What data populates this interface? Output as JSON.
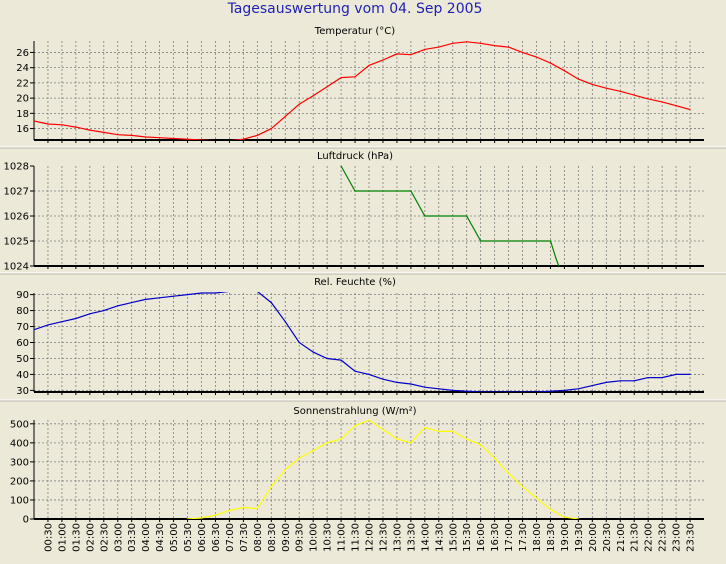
{
  "page": {
    "title": "Tagesauswertung vom 04. Sep 2005",
    "title_color": "#1f1fb4"
  },
  "colors": {
    "background": "#ece9d8",
    "plot_background": "#ece9d8",
    "grid": "#808080",
    "axis_text": "#000000",
    "separator": "#ffffff"
  },
  "x_labels": [
    "00:30",
    "01:00",
    "01:30",
    "02:00",
    "02:30",
    "03:00",
    "03:30",
    "04:00",
    "04:30",
    "05:00",
    "05:30",
    "06:00",
    "06:30",
    "07:00",
    "07:30",
    "08:00",
    "08:30",
    "09:00",
    "09:30",
    "10:00",
    "10:30",
    "11:00",
    "11:30",
    "12:00",
    "12:30",
    "13:00",
    "13:30",
    "14:00",
    "14:30",
    "15:00",
    "15:30",
    "16:00",
    "16:30",
    "17:00",
    "17:30",
    "18:00",
    "18:30",
    "19:00",
    "19:30",
    "20:00",
    "20:30",
    "21:00",
    "21:30",
    "22:00",
    "22:30",
    "23:00",
    "23:30"
  ],
  "chart_data": [
    {
      "type": "line",
      "title": "Temperatur (°C)",
      "color": "#ff0000",
      "ylim": [
        14.5,
        27.5
      ],
      "yticks": [
        16,
        18,
        20,
        22,
        24,
        26
      ],
      "grid": true,
      "x": [
        0.0,
        0.5,
        1.0,
        1.5,
        2.0,
        2.5,
        3.0,
        3.5,
        4.0,
        4.5,
        5.0,
        5.5,
        6.0,
        6.5,
        7.0,
        7.5,
        8.0,
        8.5,
        9.0,
        9.5,
        10.0,
        10.5,
        11.0,
        11.5,
        12.0,
        12.5,
        13.0,
        13.5,
        14.0,
        14.5,
        15.0,
        15.5,
        16.0,
        16.5,
        17.0,
        17.5,
        18.0,
        18.5,
        19.0,
        19.5,
        20.0,
        20.5,
        21.0,
        21.5,
        22.0,
        22.5,
        23.0,
        23.5
      ],
      "values": [
        17.0,
        16.6,
        16.5,
        16.2,
        15.8,
        15.5,
        15.2,
        15.1,
        14.9,
        14.8,
        14.7,
        14.6,
        14.5,
        14.4,
        14.4,
        14.6,
        15.1,
        16.0,
        17.6,
        19.2,
        20.3,
        21.5,
        22.7,
        22.8,
        24.3,
        25.0,
        25.8,
        25.7,
        26.4,
        26.7,
        27.2,
        27.4,
        27.2,
        26.9,
        26.7,
        26.0,
        25.4,
        24.6,
        23.6,
        22.5,
        21.8,
        21.3,
        20.9,
        20.4,
        19.9,
        19.5,
        19.0,
        18.5
      ]
    },
    {
      "type": "line",
      "title": "Luftdruck (hPa)",
      "color": "#008000",
      "ylim": [
        1024,
        1028
      ],
      "yticks": [
        1024,
        1025,
        1026,
        1027,
        1028
      ],
      "grid": true,
      "x": [
        11.0,
        11.5,
        12.5,
        13.5,
        14.0,
        15.5,
        16.0,
        18.0,
        18.5,
        18.7,
        18.8
      ],
      "values": [
        1028,
        1027,
        1027,
        1027,
        1026,
        1026,
        1025,
        1025,
        1025,
        1024.3,
        1024
      ]
    },
    {
      "type": "line",
      "title": "Rel. Feuchte (%)",
      "color": "#0000c8",
      "ylim": [
        29,
        91
      ],
      "yticks": [
        30,
        40,
        50,
        60,
        70,
        80,
        90
      ],
      "grid": true,
      "x": [
        0.0,
        0.5,
        1.0,
        1.5,
        2.0,
        2.5,
        3.0,
        3.5,
        4.0,
        4.5,
        5.0,
        5.5,
        6.0,
        6.5,
        7.0,
        7.5,
        8.0,
        8.5,
        9.0,
        9.5,
        10.0,
        10.5,
        11.0,
        11.5,
        12.0,
        12.5,
        13.0,
        13.5,
        14.0,
        14.5,
        15.0,
        15.5,
        16.0,
        16.5,
        17.0,
        17.5,
        18.0,
        18.5,
        19.0,
        19.5,
        20.0,
        20.5,
        21.0,
        21.5,
        22.0,
        22.5,
        23.0,
        23.5
      ],
      "values": [
        68,
        71,
        73,
        75,
        78,
        80,
        83,
        85,
        87,
        88,
        89,
        90,
        91,
        91,
        92,
        93,
        92,
        85,
        73,
        60,
        54,
        50,
        49,
        42,
        40,
        37,
        35,
        34,
        32,
        31,
        30,
        29.5,
        29,
        29,
        29,
        29,
        29,
        29.5,
        30,
        31,
        33,
        35,
        36,
        36,
        38,
        38,
        40,
        40
      ]
    },
    {
      "type": "line",
      "title": "Sonnenstrahlung (W/m²)",
      "color": "#ffff00",
      "ylim": [
        0,
        520
      ],
      "yticks": [
        0,
        100,
        200,
        300,
        400,
        500
      ],
      "grid": true,
      "x": [
        5.5,
        6.0,
        6.5,
        7.0,
        7.5,
        8.0,
        8.5,
        9.0,
        9.5,
        10.0,
        10.5,
        11.0,
        11.5,
        12.0,
        12.5,
        13.0,
        13.5,
        14.0,
        14.5,
        15.0,
        15.5,
        16.0,
        16.5,
        17.0,
        17.5,
        18.0,
        18.5,
        19.0,
        19.5
      ],
      "values": [
        0,
        5,
        20,
        45,
        60,
        55,
        170,
        260,
        320,
        360,
        400,
        420,
        490,
        520,
        470,
        420,
        400,
        480,
        460,
        460,
        420,
        390,
        320,
        240,
        170,
        110,
        50,
        10,
        0
      ]
    }
  ]
}
